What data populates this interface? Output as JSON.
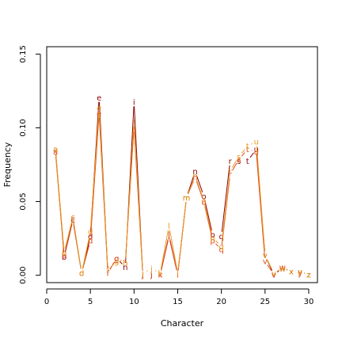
{
  "chart_data": {
    "type": "line",
    "title": "",
    "xlabel": "Character",
    "ylabel": "Frequency",
    "xlim": [
      0,
      31
    ],
    "ylim": [
      -0.005,
      0.155
    ],
    "xticks": [
      "0",
      "5",
      "10",
      "15",
      "20",
      "25",
      "30"
    ],
    "yticks": [
      "0.00",
      "0.05",
      "0.10",
      "0.15"
    ],
    "grid": false,
    "colors": [
      "#8B0000",
      "#E8481E",
      "#E89A1A"
    ],
    "series": [
      {
        "color": "#8B0000",
        "x": [
          1,
          2,
          3,
          4,
          5,
          6,
          7,
          8,
          9,
          10,
          11,
          12,
          13,
          14,
          15,
          16,
          17,
          18,
          19,
          20,
          21,
          22,
          23,
          24,
          25,
          26,
          27,
          28,
          29,
          30
        ],
        "values": [
          0.0855,
          0.0125,
          0.0375,
          0.0015,
          0.0265,
          0.1205,
          0.0015,
          0.0115,
          0.0055,
          0.1175,
          0.0005,
          0.0005,
          0.0005,
          0.0265,
          0.0005,
          0.0525,
          0.0705,
          0.0535,
          0.0275,
          0.0265,
          0.0775,
          0.0775,
          0.0775,
          0.0855,
          0.0135,
          0.0005,
          0.0045,
          0.0025,
          0.0025,
          0.0005
        ],
        "labels": [
          "a",
          "b",
          "c",
          "d",
          "d",
          "e",
          "f",
          "g",
          "h",
          "i",
          "j",
          "j",
          "k",
          "l",
          "l",
          "m",
          "n",
          "o",
          "p",
          "q",
          "r",
          "s",
          "t",
          "u",
          "v",
          "v",
          "w",
          "x",
          "y",
          "z"
        ]
      },
      {
        "color": "#E8481E",
        "x": [
          1,
          2,
          3,
          4,
          5,
          6,
          7,
          8,
          9,
          10,
          11,
          12,
          13,
          14,
          15,
          16,
          17,
          18,
          19,
          20,
          21,
          22,
          23,
          24,
          25,
          26,
          27,
          28,
          29,
          30
        ],
        "values": [
          0.0835,
          0.0135,
          0.0385,
          0.0015,
          0.0235,
          0.1095,
          0.0015,
          0.0115,
          0.0085,
          0.1005,
          0.0005,
          0.0005,
          0.0005,
          0.0275,
          0.0005,
          0.0525,
          0.0665,
          0.0495,
          0.0235,
          0.0175,
          0.0685,
          0.0785,
          0.0855,
          0.0835,
          0.0095,
          0.0005,
          0.0055,
          0.0025,
          0.0015,
          0.0005
        ],
        "labels": [
          "a",
          "b",
          "c",
          "d",
          "d",
          "e",
          "f",
          "g",
          "h",
          "i",
          "j",
          "j",
          "k",
          "l",
          "l",
          "m",
          "n",
          "o",
          "p",
          "q",
          "r",
          "s",
          "t",
          "u",
          "v",
          "v",
          "w",
          "x",
          "y",
          "z"
        ]
      },
      {
        "color": "#E89A1A",
        "x": [
          1,
          2,
          3,
          4,
          5,
          6,
          7,
          8,
          9,
          10,
          11,
          12,
          13,
          14,
          15,
          16,
          17,
          18,
          19,
          20,
          21,
          22,
          23,
          24,
          25,
          26,
          27,
          28,
          29,
          30
        ],
        "values": [
          0.0855,
          0.0155,
          0.0395,
          0.0015,
          0.0295,
          0.1135,
          0.0035,
          0.0095,
          0.0085,
          0.1045,
          0.0015,
          0.0045,
          0.0015,
          0.0335,
          0.0015,
          0.0525,
          0.0675,
          0.0505,
          0.0255,
          0.0195,
          0.0705,
          0.0805,
          0.0875,
          0.0905,
          0.0135,
          0.0015,
          0.0045,
          0.0025,
          0.0025,
          0.0005
        ],
        "labels": [
          "a",
          "b",
          "c",
          "d",
          "d",
          "e",
          "f",
          "g",
          "h",
          "i",
          "j",
          "j",
          "k",
          "l",
          "l",
          "m",
          "n",
          "o",
          "p",
          "q",
          "r",
          "s",
          "t",
          "u",
          "v",
          "v",
          "w",
          "x",
          "y",
          "z"
        ]
      }
    ]
  }
}
